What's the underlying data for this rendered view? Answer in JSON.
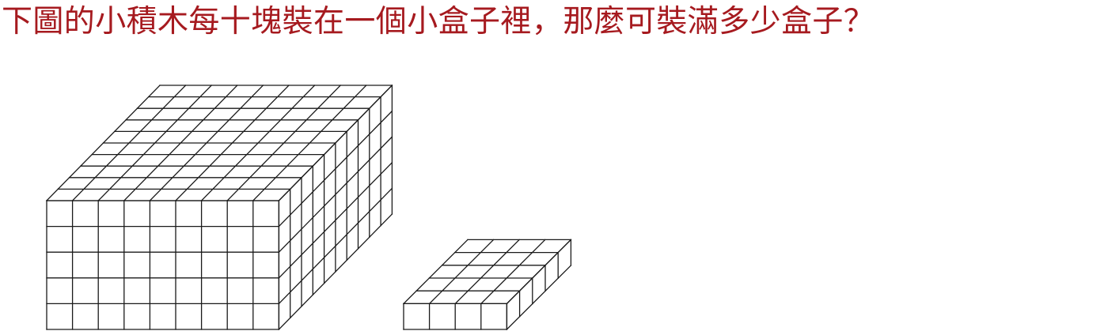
{
  "question": {
    "text": "下圖的小積木每十塊裝在一個小盒子裡，那麼可裝滿多少盒子？",
    "color": "#a61a1f"
  },
  "figures": {
    "large_block": {
      "width": 9,
      "height": 5,
      "depth": 10
    },
    "small_block": {
      "width": 4,
      "height": 1,
      "depth": 5
    }
  },
  "line_color": "#1a1a1a"
}
